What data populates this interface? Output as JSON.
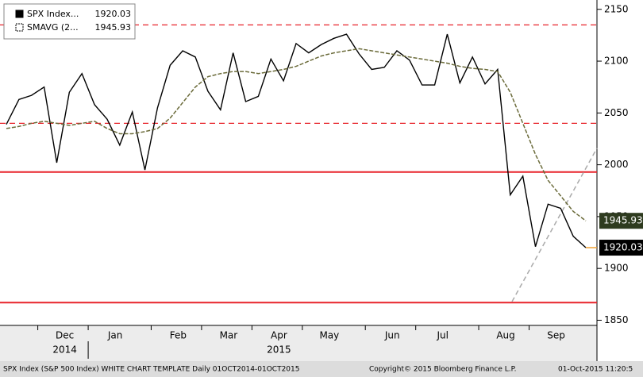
{
  "chart_data": {
    "type": "line",
    "categories": [
      null,
      null,
      null,
      "Dec",
      null,
      null,
      null,
      "Jan",
      null,
      null,
      null,
      null,
      "Feb",
      null,
      null,
      null,
      "Mar",
      null,
      null,
      null,
      "Apr",
      null,
      null,
      null,
      "May",
      null,
      null,
      null,
      null,
      "Jun",
      null,
      null,
      null,
      "Jul",
      null,
      null,
      null,
      null,
      "Aug",
      null,
      null,
      null,
      "Sep",
      null,
      null,
      null,
      null
    ],
    "years": [
      "2014",
      "2015"
    ],
    "series": [
      {
        "name": "SPX Index...",
        "color": "#000000",
        "values": [
          2039,
          2063,
          2067,
          2075,
          2002,
          2070,
          2088,
          2058,
          2044,
          2019,
          2051,
          1995,
          2055,
          2096,
          2110,
          2104,
          2071,
          2053,
          2108,
          2061,
          2066,
          2102,
          2081,
          2117,
          2108,
          2116,
          2122,
          2126,
          2107,
          2092,
          2094,
          2110,
          2101,
          2077,
          2077,
          2126,
          2079,
          2104,
          2078,
          2092,
          1971,
          1989,
          1921,
          1962,
          1958,
          1931,
          1920.03
        ]
      },
      {
        "name": "SMAVG (2...",
        "color": "#6b6b3a",
        "values": [
          2035,
          2037,
          2040,
          2042,
          2040,
          2038,
          2040,
          2042,
          2035,
          2030,
          2030,
          2032,
          2035,
          2045,
          2060,
          2075,
          2085,
          2088,
          2090,
          2090,
          2088,
          2090,
          2092,
          2095,
          2100,
          2105,
          2108,
          2110,
          2112,
          2110,
          2108,
          2106,
          2104,
          2102,
          2100,
          2098,
          2095,
          2093,
          2092,
          2090,
          2070,
          2040,
          2010,
          1985,
          1970,
          1955,
          1945.93
        ]
      }
    ],
    "reference_lines": [
      {
        "value": 2135,
        "color": "#e8232a",
        "style": "dashed"
      },
      {
        "value": 2040,
        "color": "#e8232a",
        "style": "dashed"
      },
      {
        "value": 1993,
        "color": "#e8232a",
        "style": "solid"
      },
      {
        "value": 1867,
        "color": "#e8232a",
        "style": "solid"
      }
    ],
    "trendline": {
      "values": [
        1868,
        2016
      ],
      "color": "#aaaaaa"
    },
    "ylim": [
      1845,
      2159
    ],
    "yticks": [
      1850,
      1900,
      1950,
      2000,
      2050,
      2100,
      2150
    ],
    "footer": {
      "left": "SPX Index (S&P 500 Index) WHITE CHART TEMPLATE  Daily 01OCT2014-01OCT2015",
      "center": "Copyright© 2015 Bloomberg Finance L.P.",
      "right": "01-Oct-2015 11:20:5"
    }
  }
}
